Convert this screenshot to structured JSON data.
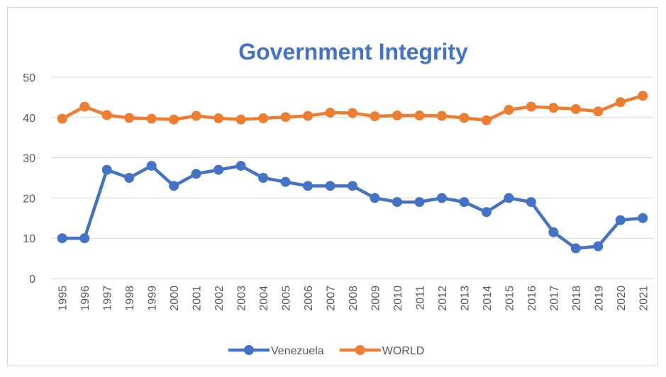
{
  "chart_data": {
    "type": "line",
    "title": "Government Integrity",
    "categories": [
      "1995",
      "1996",
      "1997",
      "1998",
      "1999",
      "2000",
      "2001",
      "2002",
      "2003",
      "2004",
      "2005",
      "2006",
      "2007",
      "2008",
      "2009",
      "2010",
      "2011",
      "2012",
      "2013",
      "2014",
      "2015",
      "2016",
      "2017",
      "2018",
      "2019",
      "2020",
      "2021"
    ],
    "series": [
      {
        "name": "Venezuela",
        "color": "#4472c4",
        "values": [
          10,
          10,
          27,
          25,
          28,
          23,
          26,
          27,
          28,
          25,
          24,
          23,
          23,
          23,
          20,
          19,
          19,
          20,
          19,
          16.5,
          20,
          19,
          11.5,
          7.5,
          8,
          14.5,
          15
        ]
      },
      {
        "name": "WORLD",
        "color": "#ed7d31",
        "values": [
          39.7,
          42.7,
          40.6,
          39.9,
          39.7,
          39.5,
          40.4,
          39.8,
          39.5,
          39.8,
          40.1,
          40.4,
          41.2,
          41.1,
          40.3,
          40.5,
          40.5,
          40.4,
          39.9,
          39.3,
          41.9,
          42.7,
          42.4,
          42.1,
          41.5,
          43.8,
          45.4
        ]
      }
    ],
    "ylim": [
      0,
      50
    ],
    "yticks": [
      0,
      10,
      20,
      30,
      40,
      50
    ],
    "grid": true,
    "legend": "bottom"
  }
}
